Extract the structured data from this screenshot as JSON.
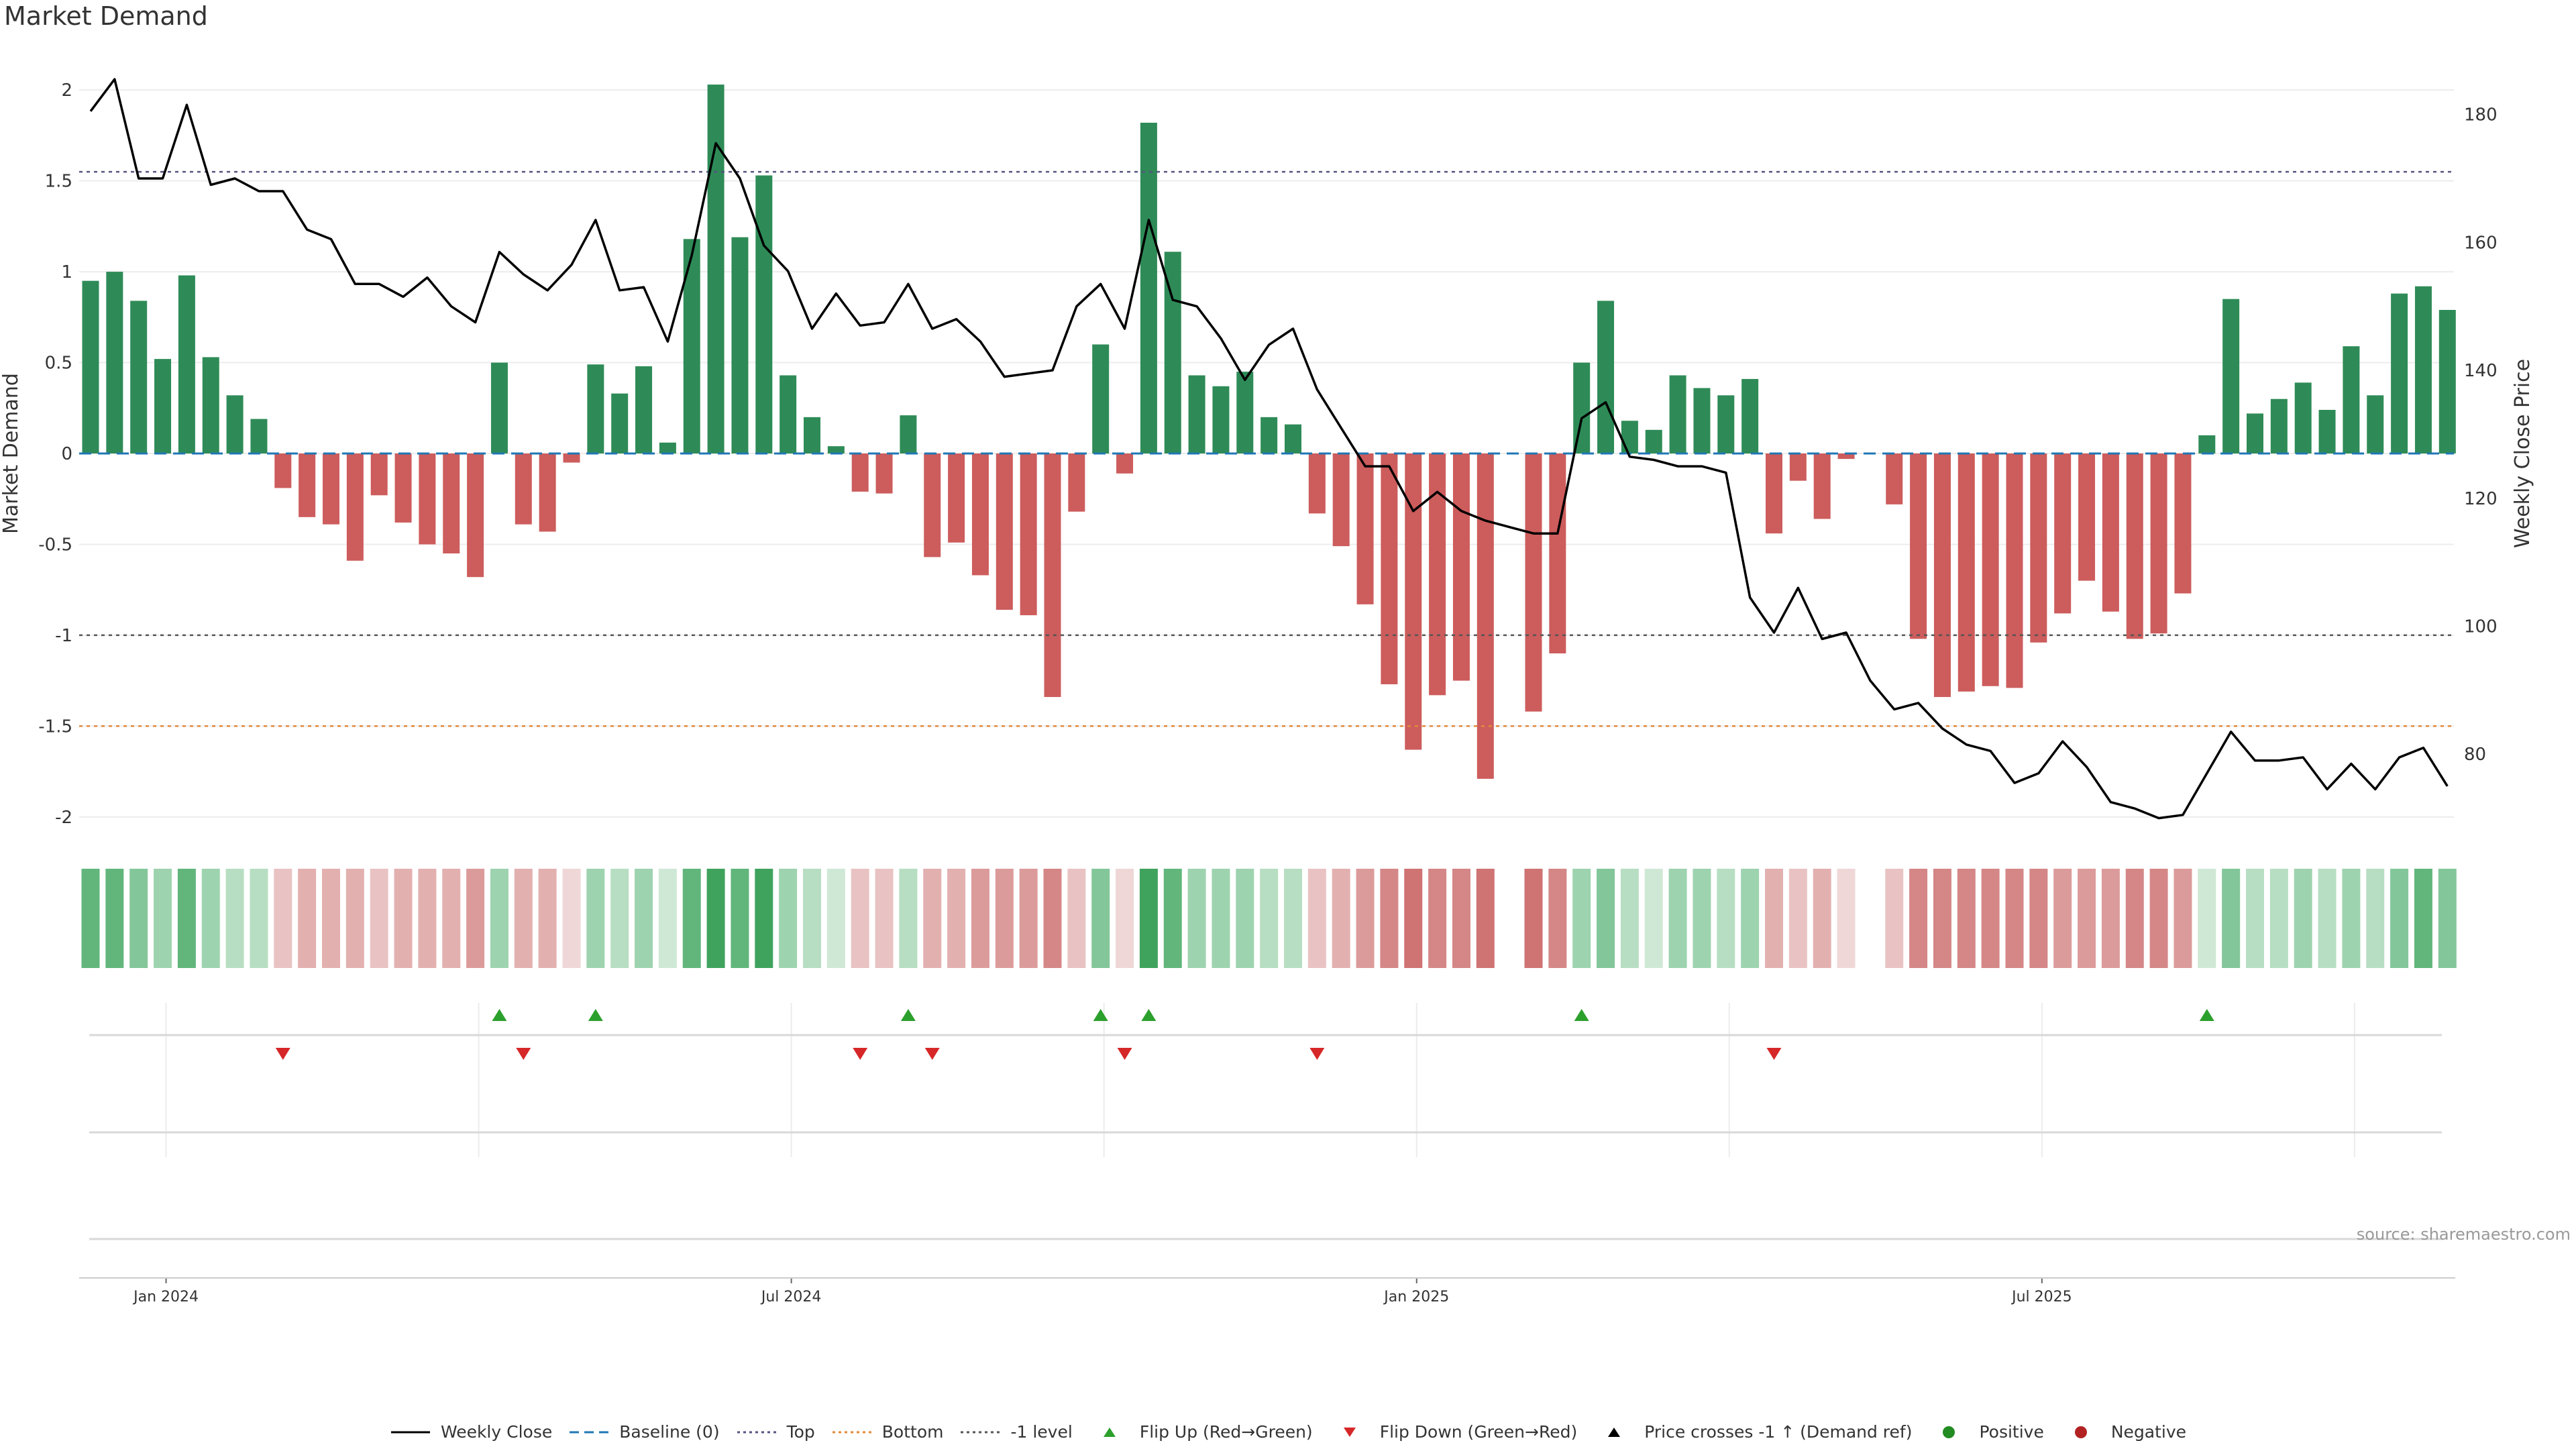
{
  "page": {
    "title": "Market Demand"
  },
  "colors": {
    "positive_bar": "#2e8b57",
    "negative_bar": "#cd5c5c",
    "price_line": "#000000",
    "baseline": "#1f77b4",
    "top_line": "#555580",
    "bottom_line": "#e08a3a",
    "minus1_line": "#555555",
    "flip_up": "#2ca02c",
    "flip_down": "#d62728",
    "positive_marker": "#228b22",
    "negative_marker": "#b22222"
  },
  "chart_data": {
    "type": "bar",
    "title": "Market Demand",
    "ylabel": "Market Demand",
    "y2label": "Weekly Close Price",
    "ylim": [
      -2.2,
      2.2
    ],
    "y2lim": [
      64.5,
      189.5
    ],
    "yticks": [
      "-2",
      "-1.5",
      "-1",
      "-0.5",
      "0",
      "0.5",
      "1",
      "1.5",
      "2"
    ],
    "y2ticks": [
      "80",
      "100",
      "120",
      "140",
      "160",
      "180"
    ],
    "x_tick_labels": [
      "Jan 2024",
      "Jul 2024",
      "Jan 2025",
      "Jul 2025"
    ],
    "x_tick_week_index": [
      3,
      29,
      55,
      81
    ],
    "reference_lines": {
      "baseline": 0,
      "top": 1.55,
      "bottom": -1.5,
      "minus1_level": -1.0
    },
    "series": [
      {
        "name": "Market Demand",
        "values": [
          0.95,
          1.0,
          0.84,
          0.52,
          0.98,
          0.53,
          0.32,
          0.19,
          -0.19,
          -0.35,
          -0.39,
          -0.59,
          -0.23,
          -0.38,
          -0.5,
          -0.55,
          -0.68,
          0.5,
          -0.39,
          -0.43,
          -0.05,
          0.49,
          0.33,
          0.48,
          0.06,
          1.18,
          2.03,
          1.19,
          1.53,
          0.43,
          0.2,
          0.04,
          -0.21,
          -0.22,
          0.21,
          -0.57,
          -0.49,
          -0.67,
          -0.86,
          -0.89,
          -1.34,
          -0.32,
          0.6,
          -0.11,
          1.82,
          1.11,
          0.43,
          0.37,
          0.45,
          0.2,
          0.16,
          -0.33,
          -0.51,
          -0.83,
          -1.27,
          -1.63,
          -1.33,
          -1.25,
          -1.79,
          null,
          -1.42,
          -1.1,
          0.5,
          0.84,
          0.18,
          0.13,
          0.43,
          0.36,
          0.32,
          0.41,
          -0.44,
          -0.15,
          -0.36,
          -0.03,
          null,
          -0.28,
          -1.02,
          -1.34,
          -1.31,
          -1.28,
          -1.29,
          -1.04,
          -0.88,
          -0.7,
          -0.87,
          -1.02,
          -0.99,
          -0.77,
          0.1,
          0.85,
          0.22,
          0.3,
          0.39,
          0.24,
          0.59,
          0.32,
          0.88,
          0.92,
          0.79
        ]
      },
      {
        "name": "Weekly Close",
        "values": [
          180.5,
          185.5,
          170,
          170,
          181.5,
          169,
          170,
          168,
          168,
          162,
          160.5,
          153.5,
          153.5,
          151.5,
          154.5,
          150,
          147.5,
          158.5,
          155,
          152.5,
          156.5,
          163.5,
          152.5,
          153,
          144.5,
          158,
          175.5,
          170,
          159.5,
          155.5,
          146.5,
          152,
          147,
          147.5,
          153.5,
          146.5,
          148,
          144.5,
          139,
          139.5,
          140,
          150,
          153.5,
          146.5,
          163.5,
          151,
          150,
          145,
          138.5,
          144,
          146.5,
          137,
          131,
          125,
          125,
          118,
          121,
          118,
          116.5,
          115.5,
          114.5,
          114.5,
          132.5,
          135,
          126.5,
          126,
          125,
          125,
          124,
          104.5,
          99,
          106,
          98,
          99,
          91.5,
          87,
          88,
          84,
          81.5,
          80.5,
          75.5,
          77,
          82,
          78,
          72.5,
          71.5,
          70,
          70.5,
          77,
          83.5,
          79,
          79,
          79.5,
          74.5,
          78.5,
          74.5,
          79.5,
          81,
          75
        ]
      }
    ],
    "flip_up_week_index": [
      17,
      21,
      34,
      42,
      44,
      62,
      88
    ],
    "flip_down_week_index": [
      8,
      18,
      32,
      35,
      43,
      51,
      70
    ],
    "legend": [
      "Weekly Close",
      "Baseline (0)",
      "Top",
      "Bottom",
      "-1 level",
      "Flip Up (Red→Green)",
      "Flip Down (Green→Red)",
      "Price crosses -1 ↑ (Demand ref)",
      "Positive",
      "Negative"
    ],
    "source": "source: sharemaestro.com"
  }
}
